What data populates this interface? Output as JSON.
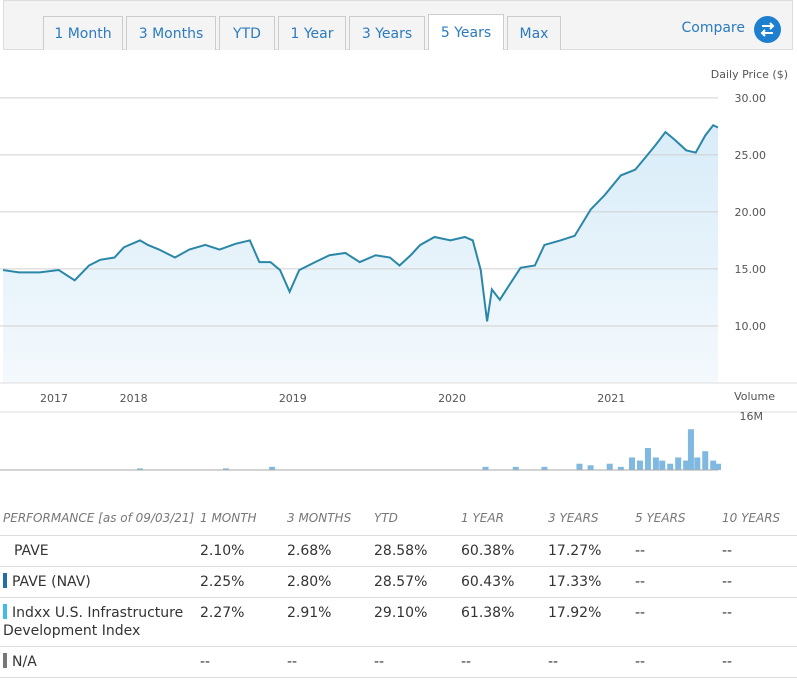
{
  "tabs": {
    "items": [
      "1 Month",
      "3 Months",
      "YTD",
      "1 Year",
      "3 Years",
      "5 Years",
      "Max"
    ],
    "active": 5
  },
  "compare": "Compare",
  "chart_data": [
    {
      "type": "line",
      "y_label": "Daily Price ($)",
      "color": "#2a87a8",
      "fill": "#e3f1fa",
      "x": [
        2017.18,
        2017.28,
        2017.41,
        2017.53,
        2017.63,
        2017.72,
        2017.79,
        2017.88,
        2017.94,
        2018.04,
        2018.09,
        2018.16,
        2018.26,
        2018.35,
        2018.45,
        2018.54,
        2018.64,
        2018.73,
        2018.79,
        2018.86,
        2018.92,
        2018.98,
        2019.04,
        2019.14,
        2019.23,
        2019.33,
        2019.42,
        2019.52,
        2019.61,
        2019.67,
        2019.74,
        2019.8,
        2019.89,
        2019.99,
        2020.08,
        2020.13,
        2020.18,
        2020.22,
        2020.25,
        2020.3,
        2020.36,
        2020.43,
        2020.52,
        2020.58,
        2020.68,
        2020.77,
        2020.87,
        2020.96,
        2021.06,
        2021.15,
        2021.21,
        2021.28,
        2021.34,
        2021.4,
        2021.47,
        2021.53,
        2021.59,
        2021.64,
        2021.67
      ],
      "values": [
        14.9,
        14.7,
        14.7,
        14.9,
        14.0,
        15.3,
        15.8,
        16.0,
        16.9,
        17.5,
        17.1,
        16.7,
        16.0,
        16.7,
        17.1,
        16.7,
        17.2,
        17.5,
        15.6,
        15.6,
        14.9,
        13.0,
        14.9,
        15.6,
        16.2,
        16.4,
        15.6,
        16.2,
        16.0,
        15.3,
        16.2,
        17.1,
        17.8,
        17.5,
        17.8,
        17.5,
        14.9,
        10.4,
        13.2,
        12.3,
        13.6,
        15.1,
        15.3,
        17.1,
        17.5,
        17.9,
        20.2,
        21.5,
        23.2,
        23.7,
        24.7,
        25.9,
        27.0,
        26.3,
        25.4,
        25.2,
        26.7,
        27.6,
        27.4
      ],
      "xlim": [
        2017.18,
        2021.67
      ],
      "xticks": [
        {
          "value": 2017.5,
          "label": "2017"
        },
        2018,
        2019,
        2020,
        2021
      ],
      "ylim": [
        5,
        32
      ],
      "yticks": [
        {
          "value": 10,
          "label": "10.00"
        },
        {
          "value": 15,
          "label": "15.00"
        },
        {
          "value": 20,
          "label": "20.00"
        },
        {
          "value": 25,
          "label": "25.00"
        },
        {
          "value": 30,
          "label": "30.00"
        }
      ],
      "grid": true
    },
    {
      "type": "bar",
      "y_label": "Volume",
      "color": "#7fb8e0",
      "x": [
        2018.04,
        2018.58,
        2018.87,
        2020.21,
        2020.4,
        2020.58,
        2020.8,
        2020.87,
        2020.99,
        2021.06,
        2021.13,
        2021.18,
        2021.23,
        2021.28,
        2021.32,
        2021.37,
        2021.42,
        2021.47,
        2021.5,
        2021.54,
        2021.59,
        2021.64,
        2021.67
      ],
      "values": [
        0.5,
        0.5,
        1,
        1,
        1,
        1,
        2,
        1.5,
        2,
        1,
        4,
        3,
        7,
        4,
        3,
        2,
        4,
        3,
        13,
        4,
        6,
        3,
        2
      ],
      "xlim": [
        2017.18,
        2021.67
      ],
      "ylim": [
        0,
        18.5
      ],
      "yticks": [
        {
          "value": 16,
          "label": "16M"
        }
      ]
    }
  ],
  "performance": {
    "header": [
      "PERFORMANCE [as of 09/03/21]",
      "1 MONTH",
      "3 MONTHS",
      "YTD",
      "1 YEAR",
      "3 YEARS",
      "5 YEARS",
      "10 YEARS"
    ],
    "rows": [
      {
        "name": "PAVE",
        "marker": null,
        "cells": [
          "2.10%",
          "2.68%",
          "28.58%",
          "60.38%",
          "17.27%",
          "--",
          "--"
        ]
      },
      {
        "name": "PAVE (NAV)",
        "marker": "#1f6fa8",
        "cells": [
          "2.25%",
          "2.80%",
          "28.57%",
          "60.43%",
          "17.33%",
          "--",
          "--"
        ]
      },
      {
        "name": "Indxx U.S. Infrastructure Development Index",
        "marker": "#3fbde8",
        "cells": [
          "2.27%",
          "2.91%",
          "29.10%",
          "61.38%",
          "17.92%",
          "--",
          "--"
        ]
      },
      {
        "name": "N/A",
        "marker": "#777777",
        "cells": [
          "--",
          "--",
          "--",
          "--",
          "--",
          "--",
          "--"
        ]
      }
    ]
  }
}
